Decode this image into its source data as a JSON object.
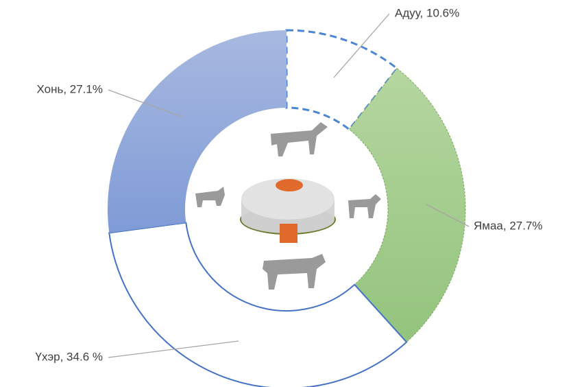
{
  "chart_data": {
    "type": "donut",
    "values": [
      10.6,
      27.7,
      34.6,
      27.1
    ],
    "value_labels": [
      "Адуу, 10.6%",
      "Ямаа, 27.7%",
      "Үхэр, 34.6 %",
      "Хонь, 27.1%"
    ],
    "colors": [
      "#ffffff",
      "#a9d18e",
      "#ffffff",
      "#8faadc"
    ]
  }
}
